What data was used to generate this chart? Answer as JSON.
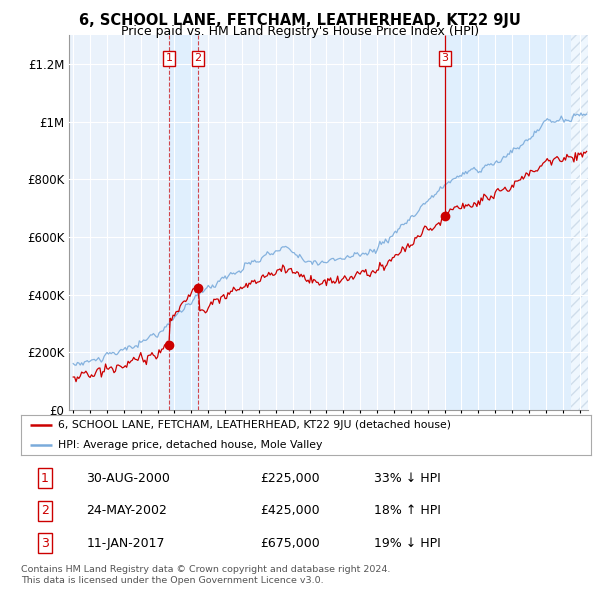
{
  "title": "6, SCHOOL LANE, FETCHAM, LEATHERHEAD, KT22 9JU",
  "subtitle": "Price paid vs. HM Land Registry's House Price Index (HPI)",
  "ylim": [
    0,
    1300000
  ],
  "yticks": [
    0,
    200000,
    400000,
    600000,
    800000,
    1000000,
    1200000
  ],
  "ytick_labels": [
    "£0",
    "£200K",
    "£400K",
    "£600K",
    "£800K",
    "£1M",
    "£1.2M"
  ],
  "xlim_start": 1994.75,
  "xlim_end": 2025.5,
  "sale_color": "#cc0000",
  "hpi_color": "#7aabdb",
  "transactions": [
    {
      "date_num": 2000.667,
      "price": 225000,
      "label": "1"
    },
    {
      "date_num": 2002.389,
      "price": 425000,
      "label": "2"
    },
    {
      "date_num": 2017.033,
      "price": 675000,
      "label": "3"
    }
  ],
  "legend_sale_label": "6, SCHOOL LANE, FETCHAM, LEATHERHEAD, KT22 9JU (detached house)",
  "legend_hpi_label": "HPI: Average price, detached house, Mole Valley",
  "table_rows": [
    {
      "num": "1",
      "date": "30-AUG-2000",
      "price": "£225,000",
      "pct": "33% ↓ HPI"
    },
    {
      "num": "2",
      "date": "24-MAY-2002",
      "price": "£425,000",
      "pct": "18% ↑ HPI"
    },
    {
      "num": "3",
      "date": "11-JAN-2017",
      "price": "£675,000",
      "pct": "19% ↓ HPI"
    }
  ],
  "footer": "Contains HM Land Registry data © Crown copyright and database right 2024.\nThis data is licensed under the Open Government Licence v3.0.",
  "bg_color": "#ffffff",
  "grid_color": "#c8d8e8",
  "shade_color": "#ddeeff",
  "hatch_color": "#c0d0e0"
}
